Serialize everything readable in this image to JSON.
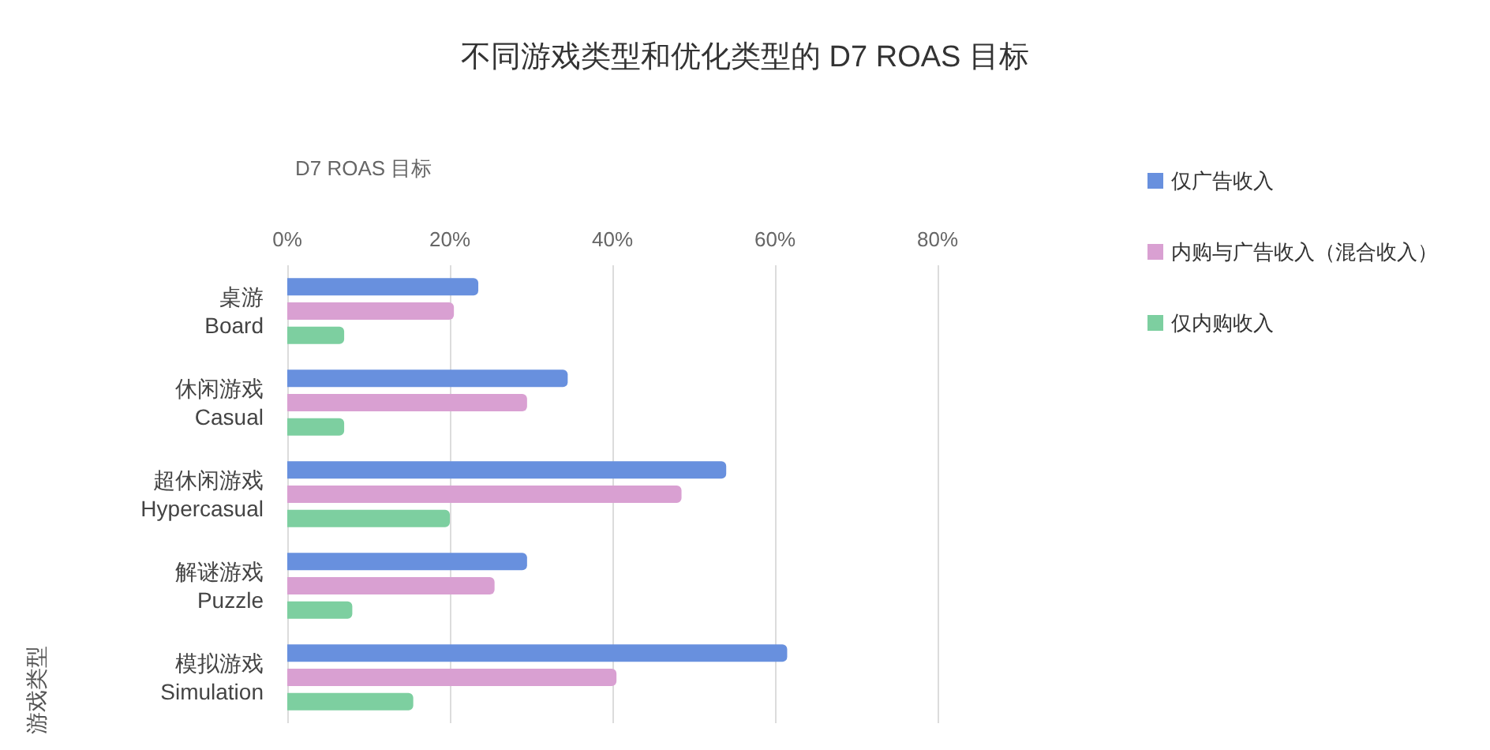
{
  "chart_data": {
    "type": "bar",
    "orientation": "horizontal",
    "title": "不同游戏类型和优化类型的 D7 ROAS 目标",
    "xlabel": "D7 ROAS 目标",
    "ylabel": "游戏类型",
    "categories": [
      "桌游\nBoard",
      "休闲游戏\nCasual",
      "超休闲游戏\nHypercasual",
      "解谜游戏\nPuzzle",
      "模拟游戏\nSimulation"
    ],
    "series": [
      {
        "name": "仅广告收入",
        "color": "#6890de",
        "values": [
          23.5,
          34.5,
          54,
          29.5,
          61.5
        ]
      },
      {
        "name": "内购与广告收入（混合收入）",
        "color": "#d9a0d2",
        "values": [
          20.5,
          29.5,
          48.5,
          25.5,
          40.5
        ]
      },
      {
        "name": "仅内购收入",
        "color": "#7dcfa0",
        "values": [
          7,
          7,
          20,
          8,
          15.5
        ]
      }
    ],
    "xlim": [
      0,
      80
    ],
    "xticks": [
      {
        "value": 0,
        "label": "0%"
      },
      {
        "value": 20,
        "label": "20%"
      },
      {
        "value": 40,
        "label": "40%"
      },
      {
        "value": 60,
        "label": "60%"
      },
      {
        "value": 80,
        "label": "80%"
      }
    ],
    "grid": "x",
    "legend": "top right"
  }
}
